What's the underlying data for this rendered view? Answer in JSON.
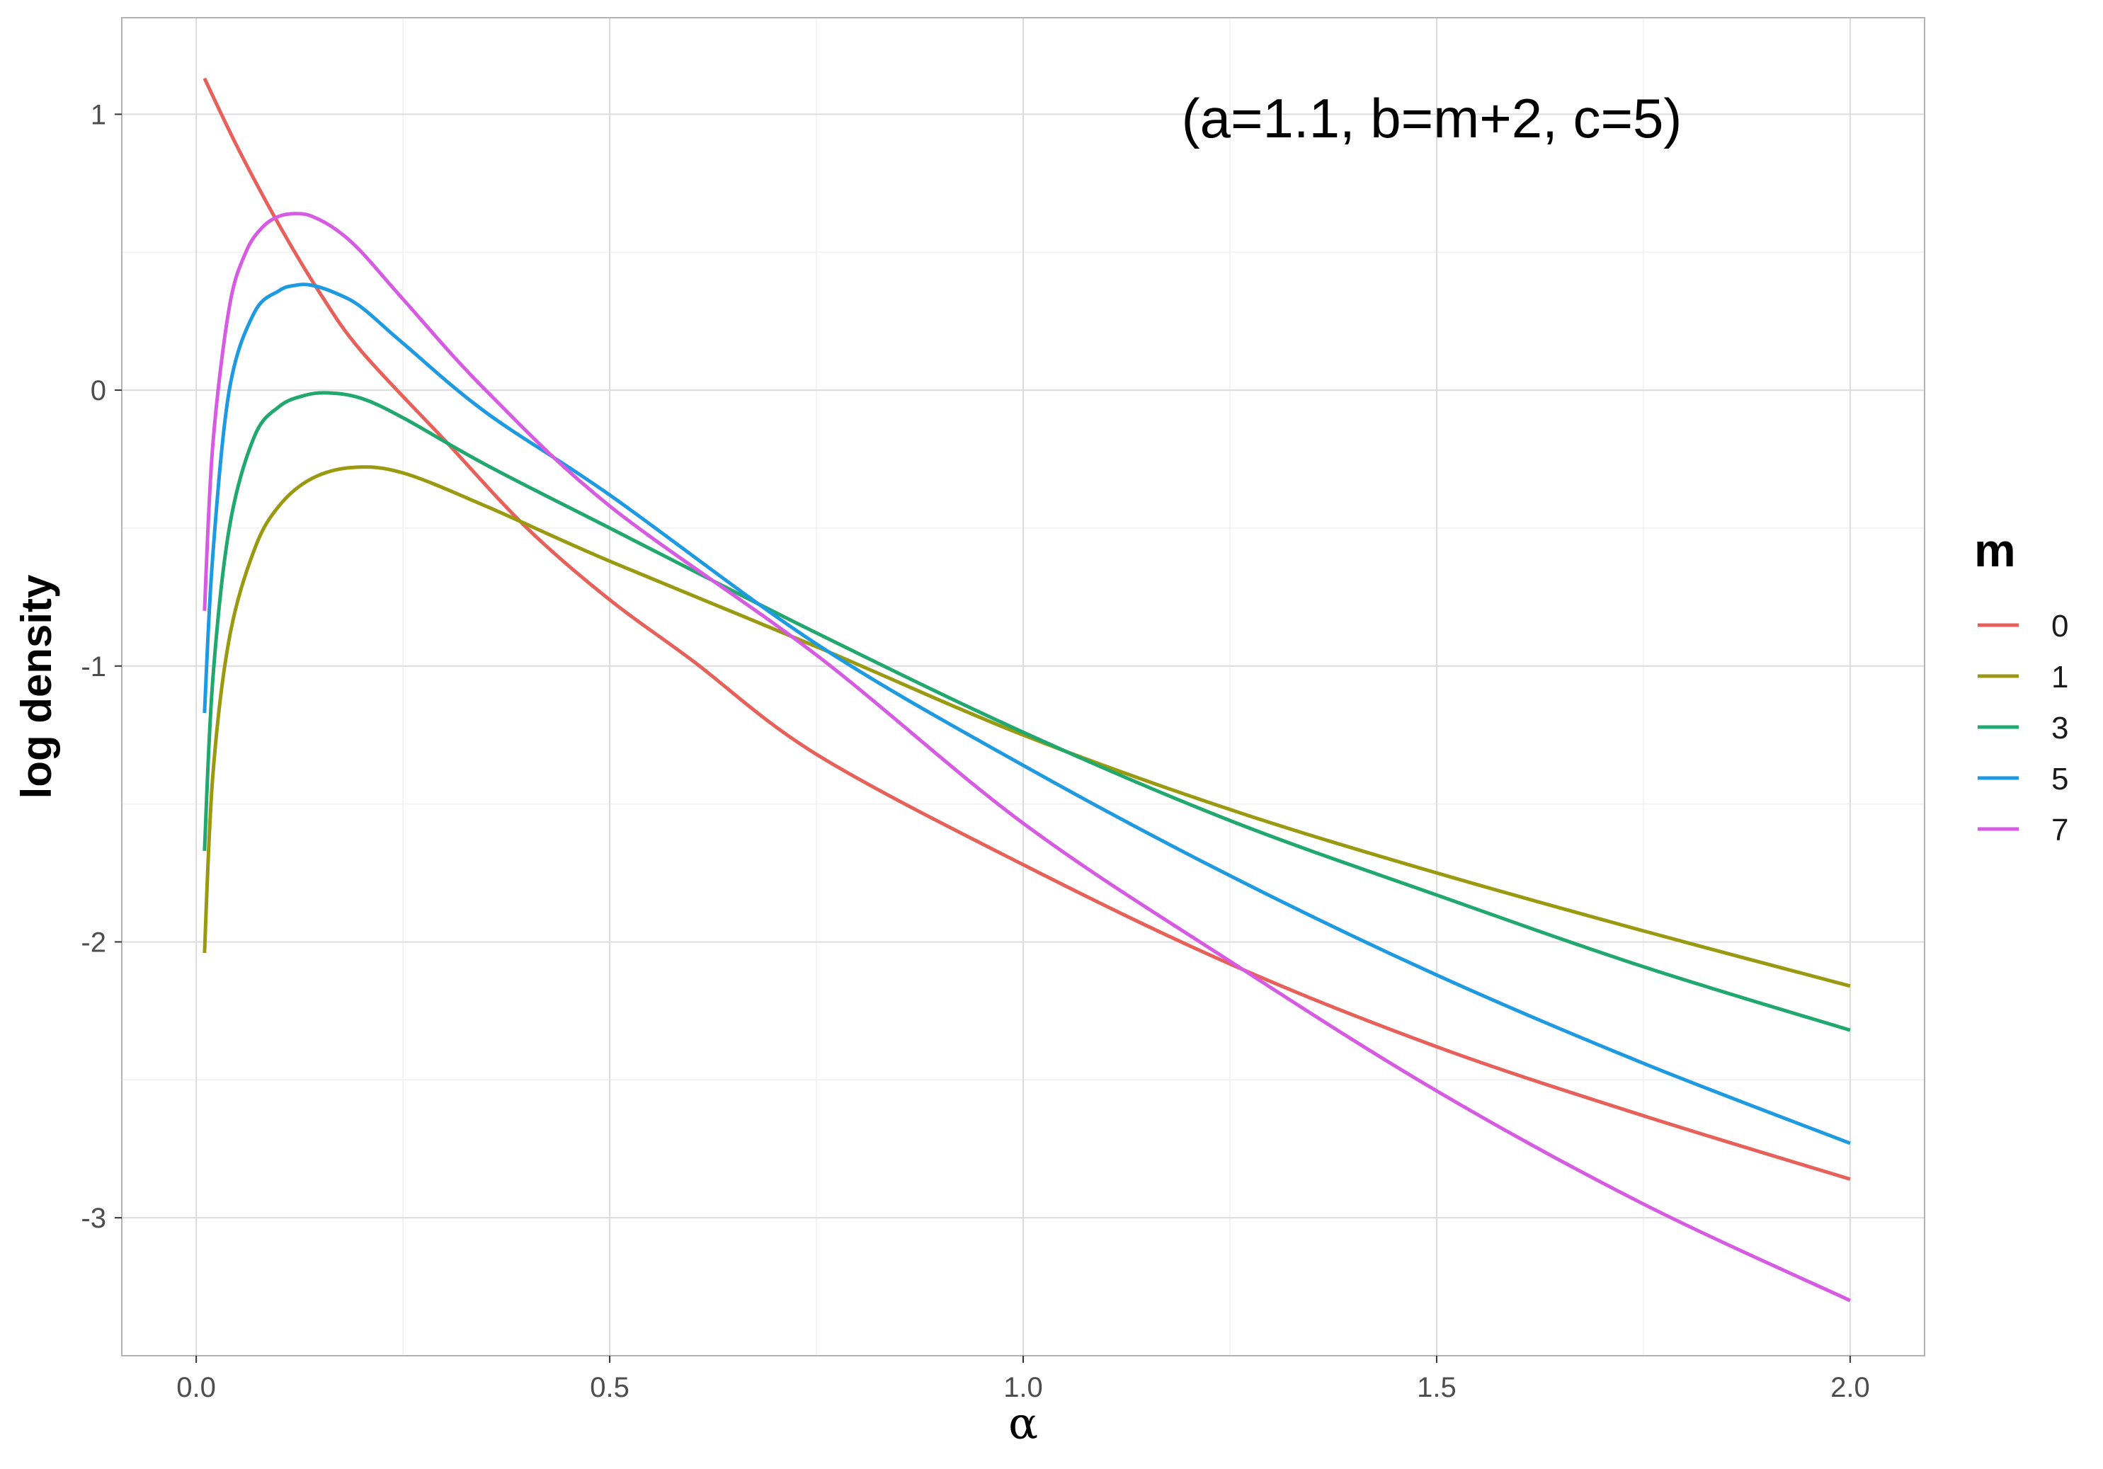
{
  "chart_data": {
    "type": "line",
    "annotation": "(a=1.1, b=m+2, c=5)",
    "xlabel": "α",
    "ylabel": "log density",
    "xlim": [
      -0.09,
      2.09
    ],
    "ylim": [
      -3.5,
      1.35
    ],
    "x_ticks": [
      0,
      0.5,
      1,
      1.5,
      2
    ],
    "x_tick_labels": [
      "0.0",
      "0.5",
      "1.0",
      "1.5",
      "2.0"
    ],
    "y_ticks": [
      -3,
      -2,
      -1,
      0,
      1
    ],
    "y_tick_labels": [
      "-3",
      "-2",
      "-1",
      "0",
      "1"
    ],
    "grid": true,
    "legend": {
      "title": "m",
      "position": "right"
    },
    "series": [
      {
        "name": "0",
        "color": "#E8605A",
        "x": [
          0.01,
          0.05,
          0.1,
          0.15,
          0.2,
          0.3,
          0.4,
          0.5,
          0.6,
          0.75,
          1.0,
          1.25,
          1.5,
          1.75,
          2.0
        ],
        "y": [
          1.13,
          0.88,
          0.6,
          0.35,
          0.14,
          -0.18,
          -0.5,
          -0.76,
          -0.98,
          -1.32,
          -1.72,
          -2.08,
          -2.38,
          -2.63,
          -2.86
        ]
      },
      {
        "name": "1",
        "color": "#9A9A10",
        "x": [
          0.01,
          0.02,
          0.04,
          0.07,
          0.1,
          0.14,
          0.19,
          0.25,
          0.35,
          0.5,
          0.75,
          1.0,
          1.25,
          1.5,
          1.75,
          2.0
        ],
        "y": [
          -2.04,
          -1.4,
          -0.9,
          -0.58,
          -0.42,
          -0.32,
          -0.28,
          -0.3,
          -0.42,
          -0.62,
          -0.93,
          -1.25,
          -1.52,
          -1.75,
          -1.96,
          -2.16
        ]
      },
      {
        "name": "3",
        "color": "#20A86E",
        "x": [
          0.01,
          0.02,
          0.04,
          0.07,
          0.1,
          0.13,
          0.16,
          0.2,
          0.25,
          0.35,
          0.5,
          0.75,
          1.0,
          1.25,
          1.5,
          1.75,
          2.0
        ],
        "y": [
          -1.67,
          -1.05,
          -0.5,
          -0.17,
          -0.06,
          -0.02,
          -0.01,
          -0.03,
          -0.1,
          -0.27,
          -0.5,
          -0.88,
          -1.24,
          -1.56,
          -1.83,
          -2.09,
          -2.32
        ]
      },
      {
        "name": "5",
        "color": "#1E9AE3",
        "x": [
          0.01,
          0.02,
          0.04,
          0.07,
          0.1,
          0.12,
          0.14,
          0.17,
          0.2,
          0.25,
          0.35,
          0.5,
          0.75,
          1.0,
          1.25,
          1.5,
          1.75,
          2.0
        ],
        "y": [
          -1.17,
          -0.6,
          0.0,
          0.28,
          0.36,
          0.38,
          0.38,
          0.35,
          0.3,
          0.17,
          -0.08,
          -0.38,
          -0.92,
          -1.36,
          -1.76,
          -2.12,
          -2.44,
          -2.73
        ]
      },
      {
        "name": "7",
        "color": "#D65AE2",
        "x": [
          0.01,
          0.02,
          0.04,
          0.06,
          0.08,
          0.1,
          0.12,
          0.14,
          0.17,
          0.2,
          0.25,
          0.35,
          0.5,
          0.75,
          1.0,
          1.25,
          1.5,
          1.75,
          2.0
        ],
        "y": [
          -0.8,
          -0.2,
          0.3,
          0.5,
          0.59,
          0.63,
          0.64,
          0.63,
          0.58,
          0.5,
          0.33,
          0.0,
          -0.42,
          -0.96,
          -1.57,
          -2.07,
          -2.54,
          -2.95,
          -3.3
        ]
      }
    ]
  }
}
